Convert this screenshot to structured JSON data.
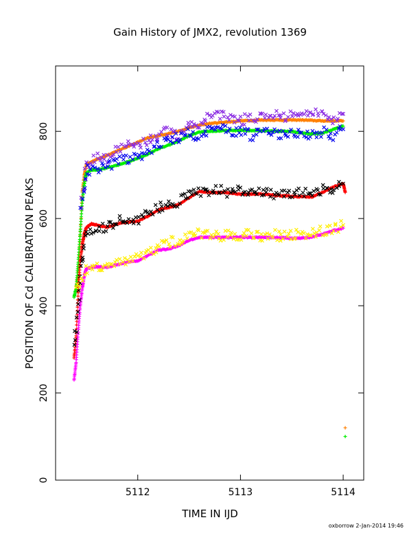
{
  "chart_data": {
    "type": "scatter",
    "title": "Gain History of JMX2, revolution 1369",
    "xlabel": "TIME IN IJD",
    "ylabel": "POSITION OF Cd CALIBRATION PEAKS",
    "footer": "oxborrow  2-Jan-2014 19:46",
    "xlim": [
      5111.2,
      5114.2
    ],
    "ylim": [
      0,
      950
    ],
    "x_ticks": [
      5112,
      5113,
      5114
    ],
    "y_ticks": [
      0,
      200,
      400,
      600,
      800
    ],
    "grid": false,
    "legend": "none",
    "series": [
      {
        "color": "#ff7f00",
        "marker": "plus",
        "style": "smooth",
        "points": [
          [
            5111.4,
            440
          ],
          [
            5111.42,
            470
          ],
          [
            5111.44,
            560
          ],
          [
            5111.46,
            660
          ],
          [
            5111.48,
            700
          ],
          [
            5111.5,
            725
          ],
          [
            5111.55,
            730
          ],
          [
            5111.6,
            735
          ],
          [
            5111.7,
            745
          ],
          [
            5111.8,
            755
          ],
          [
            5111.9,
            765
          ],
          [
            5112.0,
            775
          ],
          [
            5112.1,
            785
          ],
          [
            5112.2,
            790
          ],
          [
            5112.3,
            795
          ],
          [
            5112.4,
            800
          ],
          [
            5112.5,
            808
          ],
          [
            5112.6,
            814
          ],
          [
            5112.7,
            818
          ],
          [
            5112.8,
            820
          ],
          [
            5112.9,
            822
          ],
          [
            5113.0,
            824
          ],
          [
            5113.1,
            825
          ],
          [
            5113.2,
            826
          ],
          [
            5113.3,
            826
          ],
          [
            5113.4,
            826
          ],
          [
            5113.5,
            826
          ],
          [
            5113.6,
            826
          ],
          [
            5113.7,
            825
          ],
          [
            5113.8,
            824
          ],
          [
            5113.9,
            824
          ],
          [
            5114.0,
            824
          ],
          [
            5114.02,
            120
          ]
        ]
      },
      {
        "color": "#00ee00",
        "marker": "plus",
        "style": "smooth",
        "points": [
          [
            5111.38,
            420
          ],
          [
            5111.4,
            440
          ],
          [
            5111.42,
            500
          ],
          [
            5111.44,
            570
          ],
          [
            5111.46,
            640
          ],
          [
            5111.48,
            680
          ],
          [
            5111.5,
            705
          ],
          [
            5111.55,
            712
          ],
          [
            5111.6,
            712
          ],
          [
            5111.7,
            716
          ],
          [
            5111.8,
            722
          ],
          [
            5111.9,
            730
          ],
          [
            5112.0,
            738
          ],
          [
            5112.1,
            748
          ],
          [
            5112.2,
            760
          ],
          [
            5112.3,
            768
          ],
          [
            5112.4,
            778
          ],
          [
            5112.5,
            790
          ],
          [
            5112.6,
            798
          ],
          [
            5112.7,
            800
          ],
          [
            5112.8,
            801
          ],
          [
            5112.9,
            802
          ],
          [
            5113.0,
            802
          ],
          [
            5113.1,
            802
          ],
          [
            5113.2,
            802
          ],
          [
            5113.3,
            801
          ],
          [
            5113.4,
            800
          ],
          [
            5113.5,
            800
          ],
          [
            5113.6,
            796
          ],
          [
            5113.7,
            794
          ],
          [
            5113.8,
            796
          ],
          [
            5113.9,
            804
          ],
          [
            5114.0,
            812
          ],
          [
            5114.02,
            100
          ]
        ]
      },
      {
        "color": "#ff0000",
        "marker": "plus",
        "style": "smooth",
        "points": [
          [
            5111.38,
            280
          ],
          [
            5111.4,
            330
          ],
          [
            5111.42,
            430
          ],
          [
            5111.44,
            500
          ],
          [
            5111.46,
            540
          ],
          [
            5111.48,
            565
          ],
          [
            5111.5,
            580
          ],
          [
            5111.55,
            588
          ],
          [
            5111.6,
            585
          ],
          [
            5111.7,
            580
          ],
          [
            5111.8,
            588
          ],
          [
            5111.9,
            592
          ],
          [
            5112.0,
            594
          ],
          [
            5112.1,
            605
          ],
          [
            5112.2,
            620
          ],
          [
            5112.3,
            625
          ],
          [
            5112.4,
            632
          ],
          [
            5112.5,
            648
          ],
          [
            5112.6,
            662
          ],
          [
            5112.7,
            660
          ],
          [
            5112.8,
            660
          ],
          [
            5112.9,
            658
          ],
          [
            5113.0,
            656
          ],
          [
            5113.1,
            656
          ],
          [
            5113.2,
            656
          ],
          [
            5113.3,
            654
          ],
          [
            5113.4,
            652
          ],
          [
            5113.5,
            651
          ],
          [
            5113.6,
            650
          ],
          [
            5113.7,
            650
          ],
          [
            5113.8,
            660
          ],
          [
            5113.9,
            672
          ],
          [
            5114.0,
            680
          ],
          [
            5114.02,
            660
          ]
        ]
      },
      {
        "color": "#ff00ff",
        "marker": "plus",
        "style": "smooth",
        "points": [
          [
            5111.38,
            230
          ],
          [
            5111.4,
            270
          ],
          [
            5111.42,
            340
          ],
          [
            5111.44,
            400
          ],
          [
            5111.46,
            440
          ],
          [
            5111.48,
            470
          ],
          [
            5111.5,
            485
          ],
          [
            5111.55,
            488
          ],
          [
            5111.6,
            490
          ],
          [
            5111.7,
            488
          ],
          [
            5111.8,
            494
          ],
          [
            5111.9,
            500
          ],
          [
            5112.0,
            503
          ],
          [
            5112.1,
            515
          ],
          [
            5112.2,
            528
          ],
          [
            5112.3,
            530
          ],
          [
            5112.4,
            538
          ],
          [
            5112.5,
            550
          ],
          [
            5112.6,
            557
          ],
          [
            5112.7,
            557
          ],
          [
            5112.8,
            557
          ],
          [
            5112.9,
            557
          ],
          [
            5113.0,
            557
          ],
          [
            5113.1,
            557
          ],
          [
            5113.2,
            557
          ],
          [
            5113.3,
            556
          ],
          [
            5113.4,
            556
          ],
          [
            5113.5,
            555
          ],
          [
            5113.6,
            555
          ],
          [
            5113.7,
            558
          ],
          [
            5113.8,
            564
          ],
          [
            5113.9,
            572
          ],
          [
            5114.0,
            578
          ]
        ]
      },
      {
        "color": "#8a2be2",
        "marker": "cross",
        "style": "noisy",
        "points": [
          [
            5111.45,
            630
          ],
          [
            5111.5,
            720
          ],
          [
            5111.6,
            740
          ],
          [
            5111.7,
            735
          ],
          [
            5111.8,
            760
          ],
          [
            5111.9,
            770
          ],
          [
            5112.0,
            770
          ],
          [
            5112.1,
            780
          ],
          [
            5112.2,
            790
          ],
          [
            5112.3,
            800
          ],
          [
            5112.4,
            790
          ],
          [
            5112.5,
            820
          ],
          [
            5112.6,
            815
          ],
          [
            5112.7,
            835
          ],
          [
            5112.8,
            840
          ],
          [
            5112.9,
            830
          ],
          [
            5113.0,
            825
          ],
          [
            5113.1,
            830
          ],
          [
            5113.2,
            835
          ],
          [
            5113.3,
            840
          ],
          [
            5113.4,
            830
          ],
          [
            5113.5,
            835
          ],
          [
            5113.6,
            830
          ],
          [
            5113.7,
            845
          ],
          [
            5113.8,
            835
          ],
          [
            5113.9,
            830
          ],
          [
            5114.0,
            840
          ]
        ]
      },
      {
        "color": "#0000ee",
        "marker": "cross",
        "style": "noisy",
        "points": [
          [
            5111.45,
            620
          ],
          [
            5111.5,
            710
          ],
          [
            5111.6,
            715
          ],
          [
            5111.7,
            720
          ],
          [
            5111.8,
            730
          ],
          [
            5111.9,
            735
          ],
          [
            5112.0,
            740
          ],
          [
            5112.1,
            755
          ],
          [
            5112.2,
            770
          ],
          [
            5112.3,
            780
          ],
          [
            5112.4,
            785
          ],
          [
            5112.5,
            795
          ],
          [
            5112.6,
            790
          ],
          [
            5112.7,
            800
          ],
          [
            5112.8,
            810
          ],
          [
            5112.9,
            800
          ],
          [
            5113.0,
            800
          ],
          [
            5113.1,
            790
          ],
          [
            5113.2,
            795
          ],
          [
            5113.3,
            800
          ],
          [
            5113.4,
            790
          ],
          [
            5113.5,
            795
          ],
          [
            5113.6,
            800
          ],
          [
            5113.7,
            790
          ],
          [
            5113.8,
            800
          ],
          [
            5113.9,
            790
          ],
          [
            5114.0,
            805
          ]
        ]
      },
      {
        "color": "#000000",
        "marker": "cross",
        "style": "noisy",
        "points": [
          [
            5111.38,
            300
          ],
          [
            5111.42,
            400
          ],
          [
            5111.45,
            500
          ],
          [
            5111.5,
            560
          ],
          [
            5111.6,
            580
          ],
          [
            5111.7,
            580
          ],
          [
            5111.8,
            595
          ],
          [
            5111.9,
            595
          ],
          [
            5112.0,
            600
          ],
          [
            5112.1,
            612
          ],
          [
            5112.2,
            625
          ],
          [
            5112.3,
            632
          ],
          [
            5112.4,
            640
          ],
          [
            5112.5,
            655
          ],
          [
            5112.6,
            660
          ],
          [
            5112.7,
            665
          ],
          [
            5112.8,
            665
          ],
          [
            5112.9,
            660
          ],
          [
            5113.0,
            663
          ],
          [
            5113.1,
            660
          ],
          [
            5113.2,
            660
          ],
          [
            5113.3,
            655
          ],
          [
            5113.4,
            660
          ],
          [
            5113.5,
            655
          ],
          [
            5113.6,
            660
          ],
          [
            5113.7,
            662
          ],
          [
            5113.8,
            665
          ],
          [
            5113.9,
            670
          ],
          [
            5114.0,
            680
          ]
        ]
      },
      {
        "color": "#ffee00",
        "marker": "cross",
        "style": "noisy",
        "points": [
          [
            5111.4,
            430
          ],
          [
            5111.5,
            480
          ],
          [
            5111.6,
            490
          ],
          [
            5111.7,
            495
          ],
          [
            5111.8,
            500
          ],
          [
            5111.9,
            505
          ],
          [
            5112.0,
            510
          ],
          [
            5112.1,
            520
          ],
          [
            5112.2,
            535
          ],
          [
            5112.3,
            545
          ],
          [
            5112.4,
            550
          ],
          [
            5112.5,
            560
          ],
          [
            5112.6,
            565
          ],
          [
            5112.7,
            565
          ],
          [
            5112.8,
            560
          ],
          [
            5112.9,
            565
          ],
          [
            5113.0,
            560
          ],
          [
            5113.1,
            565
          ],
          [
            5113.2,
            560
          ],
          [
            5113.3,
            565
          ],
          [
            5113.4,
            560
          ],
          [
            5113.5,
            560
          ],
          [
            5113.6,
            565
          ],
          [
            5113.7,
            570
          ],
          [
            5113.8,
            570
          ],
          [
            5113.9,
            575
          ],
          [
            5114.0,
            585
          ]
        ]
      }
    ]
  }
}
